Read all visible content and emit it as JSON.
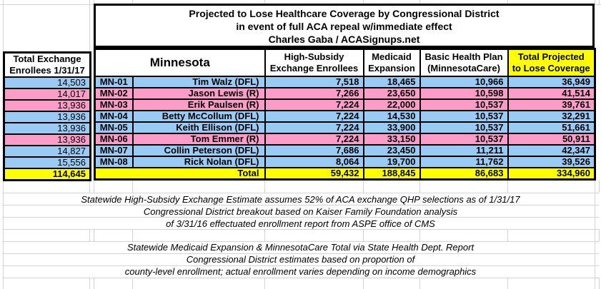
{
  "title": {
    "line1": "Projected to Lose Healthcare Coverage by Congressional District",
    "line2": "in event of full ACA repeal w/immediate effect",
    "line3": "Charles Gaba / ACASignups.net"
  },
  "left_table": {
    "header_line1": "Total Exchange",
    "header_line2": "Enrollees 1/31/17",
    "values": [
      "14,503",
      "14,017",
      "13,936",
      "13,936",
      "13,936",
      "13,936",
      "14,827",
      "15,556"
    ],
    "total": "114,645"
  },
  "main_table": {
    "state_header": "Minnesota",
    "col_headers": [
      {
        "line1": "High-Subsidy",
        "line2": "Exchange Enrollees"
      },
      {
        "line1": "Medicaid",
        "line2": "Expansion"
      },
      {
        "line1": "Basic Health Plan",
        "line2": "(MinnesotaCare)"
      },
      {
        "line1": "Total Projected",
        "line2": "to Lose Coverage"
      }
    ],
    "rows": [
      {
        "district": "MN-01",
        "rep": "Tim Walz (DFL)",
        "party": "DFL",
        "exchange": "7,518",
        "medicaid": "18,465",
        "bhp": "10,966",
        "total": "36,949"
      },
      {
        "district": "MN-02",
        "rep": "Jason Lewis (R)",
        "party": "R",
        "exchange": "7,266",
        "medicaid": "23,650",
        "bhp": "10,598",
        "total": "41,514"
      },
      {
        "district": "MN-03",
        "rep": "Erik Paulsen (R)",
        "party": "R",
        "exchange": "7,224",
        "medicaid": "22,000",
        "bhp": "10,537",
        "total": "39,761"
      },
      {
        "district": "MN-04",
        "rep": "Betty McCollum (DFL)",
        "party": "DFL",
        "exchange": "7,224",
        "medicaid": "14,530",
        "bhp": "10,537",
        "total": "32,291"
      },
      {
        "district": "MN-05",
        "rep": "Keith Ellison (DFL)",
        "party": "DFL",
        "exchange": "7,224",
        "medicaid": "33,900",
        "bhp": "10,537",
        "total": "51,661"
      },
      {
        "district": "MN-06",
        "rep": "Tom Emmer (R)",
        "party": "R",
        "exchange": "7,224",
        "medicaid": "33,150",
        "bhp": "10,537",
        "total": "50,911"
      },
      {
        "district": "MN-07",
        "rep": "Collin Peterson (DFL)",
        "party": "DFL",
        "exchange": "7,686",
        "medicaid": "23,450",
        "bhp": "11,211",
        "total": "42,347"
      },
      {
        "district": "MN-08",
        "rep": "Rick Nolan (DFL)",
        "party": "DFL",
        "exchange": "8,064",
        "medicaid": "19,700",
        "bhp": "11,762",
        "total": "39,526"
      }
    ],
    "total_label": "Total",
    "totals": {
      "exchange": "59,432",
      "medicaid": "188,845",
      "bhp": "86,683",
      "total": "334,960"
    }
  },
  "footnotes": {
    "block1": [
      "Statewide High-Subsidy Exchange Estimate assumes 52% of ACA exchange QHP selections as of 1/31/17",
      "Congressional District breakout based on Kaiser Family Foundation analysis",
      "of 3/31/16 effectuated enrollment report from ASPE office of CMS"
    ],
    "block2": [
      "Statewide Medicaid Expansion & MinnesotaCare Total via State Health Dept. Report",
      "Congressional District estimates based on proportion of",
      "county-level enrollment; actual enrollment varies depending on income demographics"
    ]
  },
  "colors": {
    "dfl_row_blue": "#9ACBF5",
    "rep_row_pink": "#FC9CC8",
    "total_yellow": "#FFFF00",
    "grid_line": "#D4D4D4",
    "border_black": "#000000"
  }
}
